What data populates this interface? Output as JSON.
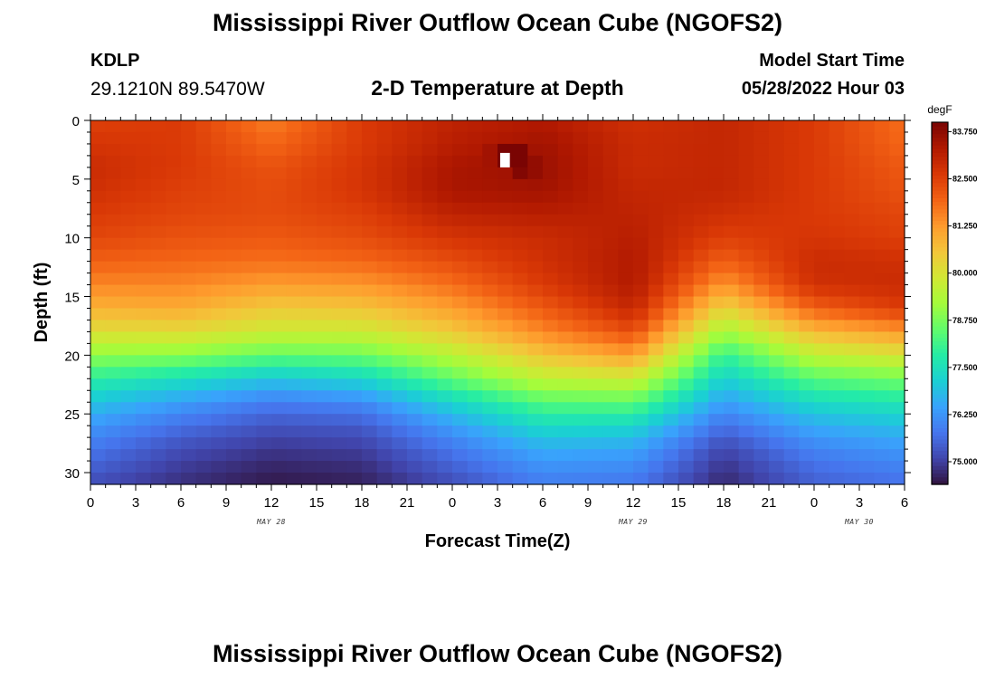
{
  "header": {
    "title": "Mississippi River Outflow Ocean Cube (NGOFS2)",
    "station": "KDLP",
    "coords": "29.1210N  89.5470W",
    "subtitle": "2-D Temperature at Depth",
    "model_start_label": "Model Start Time",
    "model_start_value": "05/28/2022 Hour 03"
  },
  "footer": {
    "title": "Mississippi River Outflow Ocean Cube (NGOFS2)"
  },
  "chart_data": {
    "type": "heatmap",
    "xlabel": "Forecast Time(Z)",
    "ylabel": "Depth (ft)",
    "x_tick_labels": [
      "0",
      "3",
      "6",
      "9",
      "12",
      "15",
      "18",
      "21",
      "0",
      "3",
      "6",
      "9",
      "12",
      "15",
      "18",
      "21",
      "0",
      "3",
      "6"
    ],
    "date_labels": [
      {
        "text": "MAY 28",
        "hours": 12
      },
      {
        "text": "MAY 29",
        "hours": 36
      },
      {
        "text": "MAY 30",
        "hours": 51
      }
    ],
    "x_range_hours": [
      0,
      54
    ],
    "y_ticks": [
      0,
      5,
      10,
      15,
      20,
      25,
      30
    ],
    "ylim": [
      0,
      31
    ],
    "y_inverted": true,
    "colorbar": {
      "unit": "degF",
      "labels": [
        "83.750",
        "82.500",
        "81.250",
        "80.000",
        "78.750",
        "77.500",
        "76.250",
        "75.000"
      ],
      "values": [
        83.75,
        82.5,
        81.25,
        80.0,
        78.75,
        77.5,
        76.25,
        75.0
      ],
      "range": [
        74.4,
        84.0
      ],
      "colormap": [
        "#30123b",
        "#4145ab",
        "#4675ed",
        "#39a2fc",
        "#1bcfd4",
        "#24eca6",
        "#61fc6c",
        "#a4fc3b",
        "#d1e834",
        "#f3c63a",
        "#fe9b2d",
        "#f36315",
        "#d93806",
        "#b11901",
        "#7a0403"
      ]
    },
    "grid": {
      "times_hours": [
        0,
        6,
        12,
        18,
        24,
        30,
        36,
        42,
        48,
        54
      ],
      "depths_ft": [
        0,
        2,
        4,
        6,
        8,
        10,
        12,
        14,
        16,
        18,
        20,
        22,
        24,
        26,
        28,
        30,
        31
      ],
      "temperature_degF": [
        [
          82.5,
          82.6,
          81.6,
          82.6,
          83.1,
          83.3,
          82.8,
          83.0,
          82.6,
          81.8
        ],
        [
          82.7,
          82.6,
          81.9,
          82.6,
          83.2,
          83.5,
          82.9,
          83.0,
          82.6,
          81.9
        ],
        [
          82.9,
          82.6,
          82.2,
          82.7,
          83.4,
          83.6,
          82.9,
          83.0,
          82.6,
          82.1
        ],
        [
          82.8,
          82.5,
          82.3,
          82.7,
          83.4,
          83.5,
          83.0,
          83.0,
          82.6,
          82.2
        ],
        [
          82.6,
          82.4,
          82.3,
          82.5,
          83.1,
          83.2,
          83.1,
          82.8,
          82.6,
          82.4
        ],
        [
          82.4,
          82.2,
          82.1,
          82.3,
          82.7,
          82.9,
          83.2,
          82.5,
          82.7,
          82.5
        ],
        [
          82.0,
          81.9,
          81.8,
          81.9,
          82.3,
          82.8,
          83.3,
          82.0,
          82.9,
          82.8
        ],
        [
          81.5,
          81.5,
          81.2,
          81.3,
          81.8,
          82.6,
          83.3,
          81.3,
          82.8,
          82.9
        ],
        [
          80.9,
          81.0,
          80.5,
          80.6,
          81.2,
          82.1,
          83.0,
          80.3,
          82.0,
          82.6
        ],
        [
          80.1,
          80.2,
          79.8,
          79.8,
          80.5,
          81.5,
          82.3,
          79.2,
          80.8,
          81.3
        ],
        [
          79.0,
          78.9,
          78.5,
          78.6,
          79.5,
          80.6,
          81.2,
          78.0,
          79.6,
          80.0
        ],
        [
          77.9,
          77.5,
          77.0,
          77.3,
          78.5,
          79.6,
          79.8,
          77.2,
          78.4,
          78.7
        ],
        [
          77.0,
          76.4,
          75.9,
          76.1,
          77.3,
          78.4,
          78.5,
          76.4,
          77.4,
          77.7
        ],
        [
          76.3,
          75.7,
          75.3,
          75.4,
          76.4,
          77.4,
          77.3,
          75.7,
          76.6,
          76.9
        ],
        [
          75.8,
          75.2,
          74.9,
          75.0,
          75.8,
          76.6,
          76.5,
          75.1,
          76.0,
          76.3
        ],
        [
          75.4,
          74.9,
          74.6,
          74.7,
          75.4,
          76.1,
          76.0,
          74.8,
          75.6,
          75.9
        ],
        [
          75.2,
          74.8,
          74.5,
          74.6,
          75.2,
          75.9,
          75.8,
          74.7,
          75.5,
          75.7
        ]
      ]
    },
    "hotspot": {
      "times_hours": [
        26,
        27,
        28,
        29,
        26,
        27,
        28,
        29,
        27,
        28,
        29
      ],
      "depths_ft": [
        2,
        2,
        2,
        2,
        3,
        3,
        3,
        3,
        4,
        4,
        4
      ],
      "temperature_degF": [
        83.5,
        84.0,
        84.0,
        83.5,
        83.5,
        84.0,
        84.0,
        83.7,
        83.5,
        83.9,
        83.7
      ]
    },
    "missing_cell": {
      "hours": 27,
      "depth_ft": 3
    }
  }
}
